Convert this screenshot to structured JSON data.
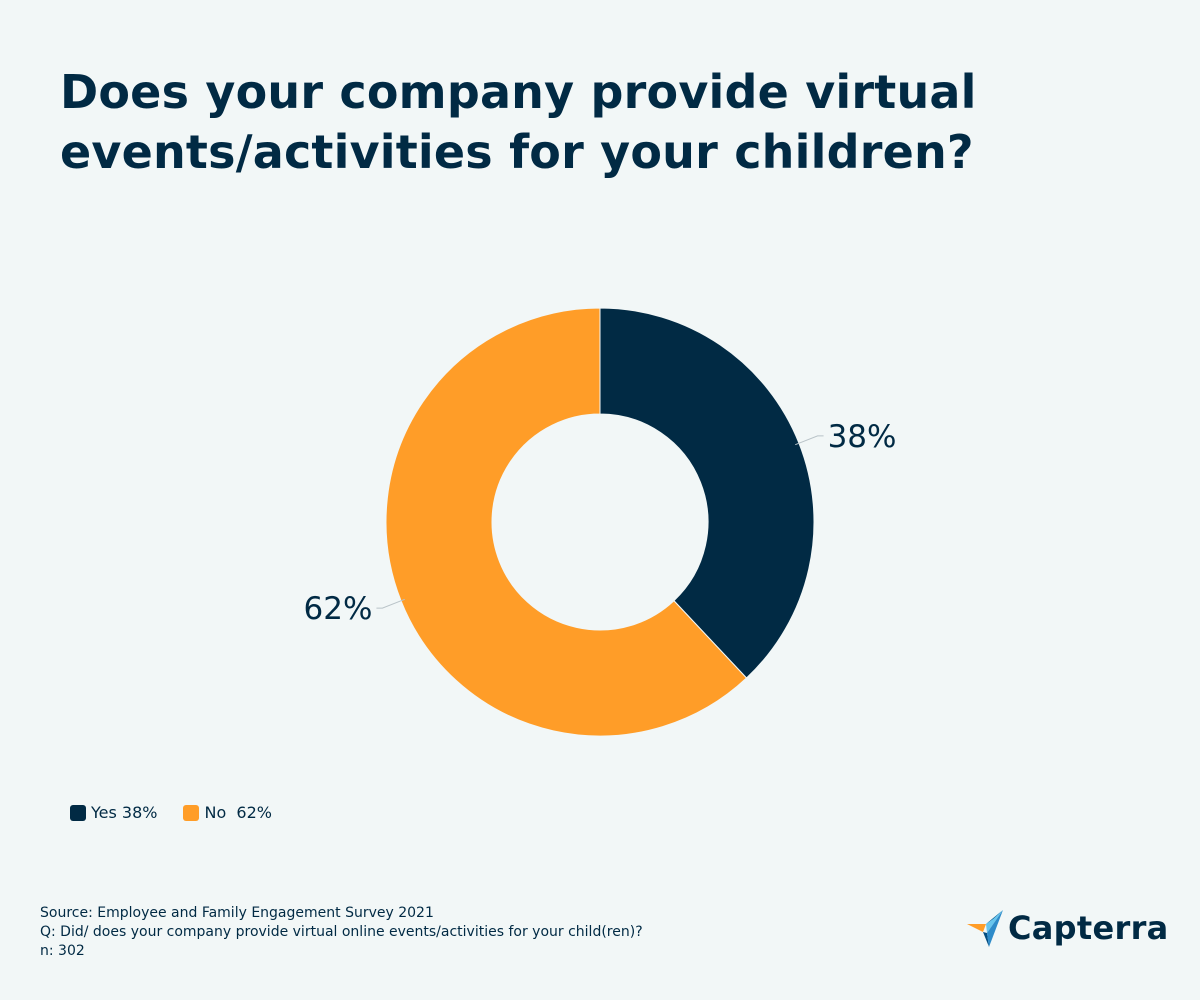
{
  "title": "Does your company provide virtual events/activities for your children?",
  "chart_data": {
    "type": "pie",
    "donut": true,
    "categories": [
      "Yes",
      "No"
    ],
    "values": [
      38,
      62
    ],
    "unit": "%",
    "data_labels": [
      "38%",
      "62%"
    ],
    "colors": [
      "#012a44",
      "#ff9d28"
    ],
    "legend": {
      "placement": "bottom-left",
      "entries": [
        "Yes 38%",
        "No  62%"
      ]
    }
  },
  "footer": {
    "source": "Source: Employee and Family Engagement Survey 2021",
    "question": "Q: Did/ does your company provide virtual online events/activities for your child(ren)?",
    "sample": "n: 302"
  },
  "logo": {
    "text": "Capterra",
    "icon": "capterra-arrow-icon"
  }
}
